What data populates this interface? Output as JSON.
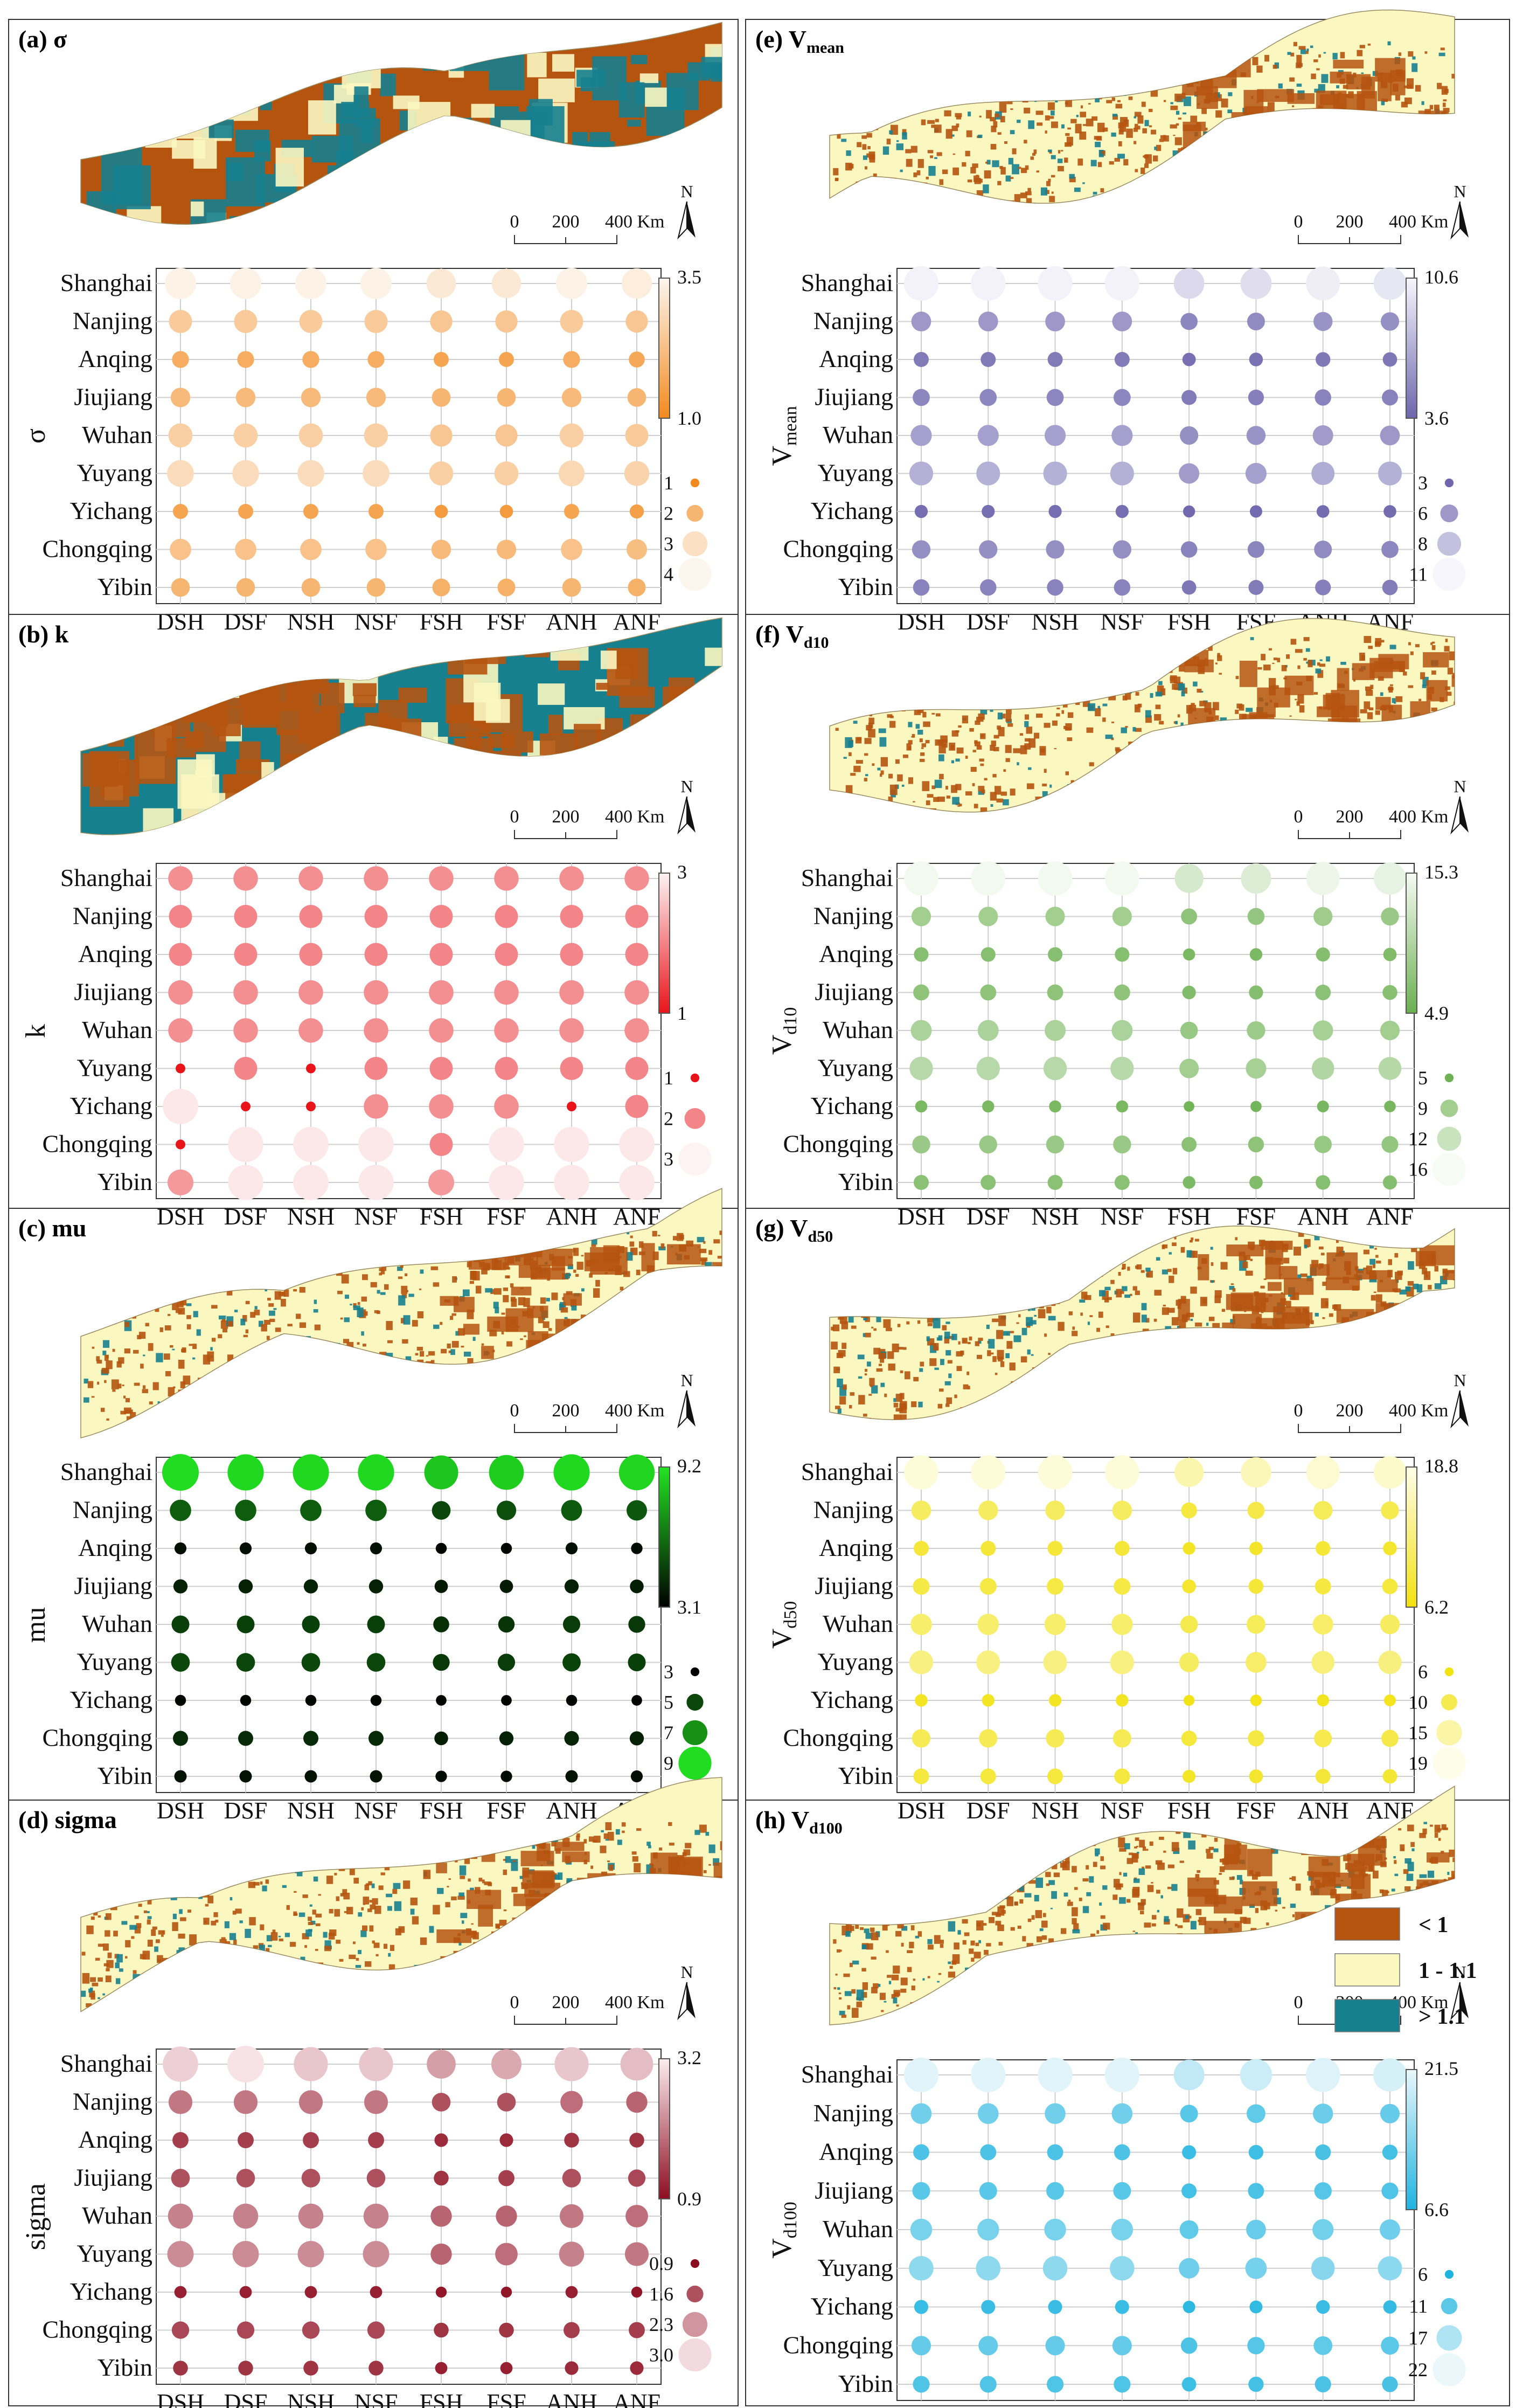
{
  "categories": [
    "DSH",
    "DSF",
    "NSH",
    "NSF",
    "FSH",
    "FSF",
    "ANH",
    "ANF"
  ],
  "cities": [
    "Shanghai",
    "Nanjing",
    "Anqing",
    "Jiujiang",
    "Wuhan",
    "Yuyang",
    "Yichang",
    "Chongqing",
    "Yibin"
  ],
  "scale_bar": {
    "ticks": [
      "0",
      "200",
      "400 Km"
    ],
    "north": "N"
  },
  "map_legend": [
    {
      "label": "< 1",
      "color": "#b5540f"
    },
    {
      "label": "1 - 1.1",
      "color": "#fbf7c1"
    },
    {
      "label": "> 1.1",
      "color": "#16808f"
    }
  ],
  "chart_data": [
    {
      "type": "scatter",
      "panel": "a",
      "title": "(a) σ",
      "ylabel": "σ",
      "colorbar": {
        "max_label": "3.5",
        "min_label": "1.0",
        "range": [
          1.0,
          3.5
        ],
        "low": "#f28a1e",
        "high": "#fdf6ee"
      },
      "size_legend": [
        "1",
        "2",
        "3",
        "4"
      ],
      "size_range": [
        1,
        4
      ],
      "values": [
        [
          3.4,
          3.4,
          3.4,
          3.4,
          3.2,
          3.2,
          3.4,
          3.3
        ],
        [
          2.5,
          2.5,
          2.5,
          2.5,
          2.4,
          2.4,
          2.5,
          2.4
        ],
        [
          1.8,
          1.8,
          1.8,
          1.8,
          1.6,
          1.6,
          1.8,
          1.7
        ],
        [
          2.1,
          2.1,
          2.1,
          2.1,
          2.0,
          2.0,
          2.1,
          2.0
        ],
        [
          2.6,
          2.6,
          2.6,
          2.6,
          2.4,
          2.4,
          2.6,
          2.5
        ],
        [
          2.9,
          2.9,
          2.9,
          2.9,
          2.6,
          2.6,
          2.8,
          2.7
        ],
        [
          1.6,
          1.6,
          1.6,
          1.6,
          1.4,
          1.4,
          1.6,
          1.5
        ],
        [
          2.3,
          2.3,
          2.3,
          2.3,
          2.1,
          2.1,
          2.3,
          2.2
        ],
        [
          2.0,
          2.0,
          2.0,
          2.0,
          1.9,
          1.9,
          2.0,
          1.9
        ]
      ]
    },
    {
      "type": "scatter",
      "panel": "b",
      "title": "(b) k",
      "ylabel": "k",
      "colorbar": {
        "max_label": "3",
        "min_label": "1",
        "range": [
          1,
          3
        ],
        "low": "#e8141a",
        "high": "#fdf3f3"
      },
      "size_legend": [
        "1",
        "2",
        "3"
      ],
      "size_range": [
        1,
        3
      ],
      "values": [
        [
          2.1,
          2.1,
          2.1,
          2.1,
          2.1,
          2.1,
          2.1,
          2.1
        ],
        [
          2.0,
          2.0,
          2.0,
          2.0,
          2.0,
          2.0,
          2.0,
          2.0
        ],
        [
          2.0,
          2.0,
          2.0,
          2.0,
          2.0,
          2.0,
          2.0,
          2.0
        ],
        [
          2.1,
          2.1,
          2.1,
          2.1,
          2.1,
          2.1,
          2.1,
          2.1
        ],
        [
          2.1,
          2.1,
          2.1,
          2.1,
          2.1,
          2.1,
          2.1,
          2.1
        ],
        [
          1.0,
          2.0,
          1.0,
          2.0,
          2.0,
          2.0,
          2.0,
          2.0
        ],
        [
          2.9,
          1.0,
          1.0,
          2.1,
          2.1,
          2.1,
          1.0,
          2.0
        ],
        [
          1.0,
          2.9,
          2.9,
          2.9,
          2.0,
          2.9,
          2.9,
          2.9
        ],
        [
          2.2,
          2.9,
          2.9,
          2.9,
          2.2,
          2.9,
          2.9,
          2.9
        ]
      ]
    },
    {
      "type": "scatter",
      "panel": "c",
      "title": "(c) mu",
      "ylabel": "mu",
      "colorbar": {
        "max_label": "9.2",
        "min_label": "3.1",
        "range": [
          3.1,
          9.2
        ],
        "low": "#000000",
        "high": "#22e322"
      },
      "size_legend": [
        "3",
        "5",
        "7",
        "9"
      ],
      "size_range": [
        3,
        9
      ],
      "values": [
        [
          9.0,
          8.9,
          8.9,
          8.9,
          8.4,
          8.6,
          8.9,
          8.8
        ],
        [
          5.6,
          5.6,
          5.6,
          5.6,
          5.0,
          5.2,
          5.5,
          5.4
        ],
        [
          3.5,
          3.5,
          3.5,
          3.5,
          3.3,
          3.3,
          3.5,
          3.4
        ],
        [
          4.0,
          4.0,
          4.0,
          4.0,
          3.8,
          3.8,
          4.0,
          3.9
        ],
        [
          4.8,
          4.8,
          4.8,
          4.8,
          4.4,
          4.5,
          4.7,
          4.6
        ],
        [
          5.0,
          5.0,
          5.0,
          5.0,
          4.6,
          4.7,
          4.9,
          4.8
        ],
        [
          3.3,
          3.3,
          3.3,
          3.3,
          3.2,
          3.2,
          3.3,
          3.2
        ],
        [
          4.2,
          4.2,
          4.2,
          4.2,
          3.9,
          4.0,
          4.1,
          4.0
        ],
        [
          3.6,
          3.6,
          3.6,
          3.6,
          3.4,
          3.4,
          3.6,
          3.5
        ]
      ]
    },
    {
      "type": "scatter",
      "panel": "d",
      "title": "(d) sigma",
      "ylabel": "sigma",
      "colorbar": {
        "max_label": "3.2",
        "min_label": "0.9",
        "range": [
          0.9,
          3.2
        ],
        "low": "#8c0d1f",
        "high": "#fcedf0"
      },
      "size_legend": [
        "0.9",
        "1.6",
        "2.3",
        "3.0"
      ],
      "size_range": [
        0.9,
        3.0
      ],
      "values": [
        [
          2.9,
          3.1,
          2.8,
          2.8,
          2.4,
          2.5,
          2.8,
          2.7
        ],
        [
          2.0,
          2.0,
          2.0,
          2.0,
          1.6,
          1.6,
          1.9,
          1.8
        ],
        [
          1.4,
          1.4,
          1.4,
          1.4,
          1.2,
          1.2,
          1.3,
          1.3
        ],
        [
          1.6,
          1.6,
          1.6,
          1.6,
          1.3,
          1.4,
          1.6,
          1.5
        ],
        [
          2.1,
          2.1,
          2.1,
          2.1,
          1.8,
          1.8,
          2.0,
          1.9
        ],
        [
          2.2,
          2.2,
          2.2,
          2.2,
          1.8,
          1.9,
          2.1,
          2.0
        ],
        [
          1.1,
          1.1,
          1.1,
          1.1,
          1.0,
          1.0,
          1.1,
          1.0
        ],
        [
          1.5,
          1.5,
          1.5,
          1.5,
          1.3,
          1.3,
          1.4,
          1.4
        ],
        [
          1.3,
          1.3,
          1.3,
          1.3,
          1.1,
          1.1,
          1.2,
          1.2
        ]
      ]
    },
    {
      "type": "scatter",
      "panel": "e",
      "title": "(e) Vmean",
      "title_main": "(e) V",
      "title_sub": "mean",
      "ylabel": "V",
      "ylabel_sub": "mean",
      "colorbar": {
        "max_label": "10.6",
        "min_label": "3.6",
        "range": [
          3.6,
          10.6
        ],
        "low": "#6f66ad",
        "high": "#f7f6fc"
      },
      "size_legend": [
        "3",
        "6",
        "8",
        "11"
      ],
      "size_range": [
        3,
        11
      ],
      "values": [
        [
          10.4,
          10.4,
          10.4,
          10.4,
          9.2,
          9.4,
          10.2,
          9.8
        ],
        [
          6.0,
          6.0,
          6.0,
          6.0,
          5.2,
          5.4,
          5.8,
          5.6
        ],
        [
          4.6,
          4.6,
          4.6,
          4.6,
          4.1,
          4.2,
          4.5,
          4.4
        ],
        [
          5.2,
          5.2,
          5.2,
          5.2,
          4.6,
          4.8,
          5.0,
          4.9
        ],
        [
          6.4,
          6.4,
          6.4,
          6.4,
          5.6,
          5.8,
          6.2,
          6.0
        ],
        [
          7.2,
          7.2,
          7.2,
          7.2,
          6.2,
          6.4,
          7.0,
          7.2
        ],
        [
          4.0,
          4.0,
          4.0,
          4.0,
          3.7,
          3.8,
          3.9,
          3.9
        ],
        [
          5.6,
          5.6,
          5.6,
          5.6,
          5.0,
          5.1,
          5.4,
          5.2
        ],
        [
          5.0,
          5.0,
          5.0,
          5.0,
          4.4,
          4.6,
          4.8,
          4.7
        ]
      ]
    },
    {
      "type": "scatter",
      "panel": "f",
      "title": "(f) Vd10",
      "title_main": "(f) V",
      "title_sub": "d10",
      "ylabel": "V",
      "ylabel_sub": "d10",
      "colorbar": {
        "max_label": "15.3",
        "min_label": "4.9",
        "range": [
          4.9,
          15.3
        ],
        "low": "#6bb050",
        "high": "#f6fbf3"
      },
      "size_legend": [
        "5",
        "9",
        "12",
        "16"
      ],
      "size_range": [
        5,
        16
      ],
      "values": [
        [
          15.0,
          15.0,
          15.0,
          15.0,
          12.8,
          13.4,
          14.6,
          14.2
        ],
        [
          9.0,
          9.0,
          9.0,
          9.0,
          7.6,
          8.0,
          8.8,
          8.4
        ],
        [
          7.0,
          7.0,
          7.0,
          7.0,
          6.0,
          6.2,
          6.8,
          6.5
        ],
        [
          7.6,
          7.6,
          7.6,
          7.6,
          6.6,
          6.8,
          7.4,
          7.1
        ],
        [
          9.6,
          9.6,
          9.6,
          9.6,
          8.2,
          8.6,
          9.3,
          9.0
        ],
        [
          10.6,
          10.6,
          10.6,
          10.6,
          9.0,
          9.4,
          10.2,
          10.4
        ],
        [
          6.0,
          6.0,
          6.0,
          6.0,
          5.4,
          5.6,
          5.9,
          5.8
        ],
        [
          8.4,
          8.4,
          8.4,
          8.4,
          7.2,
          7.5,
          8.2,
          7.9
        ],
        [
          7.2,
          7.2,
          7.2,
          7.2,
          6.2,
          6.5,
          7.0,
          6.8
        ]
      ]
    },
    {
      "type": "scatter",
      "panel": "g",
      "title": "(g) Vd50",
      "title_main": "(g) V",
      "title_sub": "d50",
      "ylabel": "V",
      "ylabel_sub": "d50",
      "colorbar": {
        "max_label": "18.8",
        "min_label": "6.2",
        "range": [
          6.2,
          18.8
        ],
        "low": "#f2e20f",
        "high": "#fefde9"
      },
      "size_legend": [
        "6",
        "10",
        "15",
        "19"
      ],
      "size_range": [
        6,
        19
      ],
      "values": [
        [
          17.8,
          17.8,
          17.8,
          17.8,
          15.4,
          16.0,
          17.4,
          17.0
        ],
        [
          10.8,
          10.8,
          10.8,
          10.8,
          9.0,
          9.6,
          10.5,
          10.0
        ],
        [
          8.6,
          8.6,
          8.6,
          8.6,
          7.4,
          7.8,
          8.4,
          8.0
        ],
        [
          9.4,
          9.4,
          9.4,
          9.4,
          8.0,
          8.5,
          9.1,
          8.8
        ],
        [
          11.6,
          11.6,
          11.6,
          11.6,
          9.8,
          10.4,
          11.2,
          10.8
        ],
        [
          12.8,
          12.8,
          12.8,
          12.8,
          10.8,
          11.4,
          12.4,
          12.6
        ],
        [
          7.4,
          7.4,
          7.4,
          7.4,
          6.6,
          6.9,
          7.2,
          7.0
        ],
        [
          10.2,
          10.2,
          10.2,
          10.2,
          8.8,
          9.2,
          9.9,
          9.6
        ],
        [
          8.9,
          8.9,
          8.9,
          8.9,
          7.6,
          8.0,
          8.6,
          8.3
        ]
      ]
    },
    {
      "type": "scatter",
      "panel": "h",
      "title": "(h) Vd100",
      "title_main": "(h) V",
      "title_sub": "d100",
      "ylabel": "V",
      "ylabel_sub": "d100",
      "colorbar": {
        "max_label": "21.5",
        "min_label": "6.6",
        "range": [
          6.6,
          21.5
        ],
        "low": "#1fb4e0",
        "high": "#eaf7fb"
      },
      "size_legend": [
        "6",
        "11",
        "17",
        "22"
      ],
      "size_range": [
        6,
        22
      ],
      "values": [
        [
          20.8,
          20.8,
          20.8,
          20.8,
          18.4,
          19.2,
          20.6,
          20.0
        ],
        [
          12.6,
          12.6,
          12.6,
          12.6,
          10.8,
          11.4,
          12.2,
          11.8
        ],
        [
          9.8,
          9.8,
          9.8,
          9.8,
          8.6,
          9.0,
          9.6,
          9.3
        ],
        [
          10.8,
          10.8,
          10.8,
          10.8,
          9.2,
          9.8,
          10.6,
          10.2
        ],
        [
          13.2,
          13.2,
          13.2,
          13.2,
          11.4,
          12.0,
          12.8,
          12.4
        ],
        [
          14.8,
          14.8,
          14.8,
          14.8,
          12.4,
          13.0,
          14.2,
          14.6
        ],
        [
          8.6,
          8.6,
          8.6,
          8.6,
          7.6,
          7.9,
          8.4,
          8.2
        ],
        [
          11.8,
          11.8,
          11.8,
          11.8,
          10.0,
          10.6,
          11.4,
          11.0
        ],
        [
          10.2,
          10.2,
          10.2,
          10.2,
          8.8,
          9.3,
          9.9,
          9.6
        ]
      ]
    }
  ]
}
